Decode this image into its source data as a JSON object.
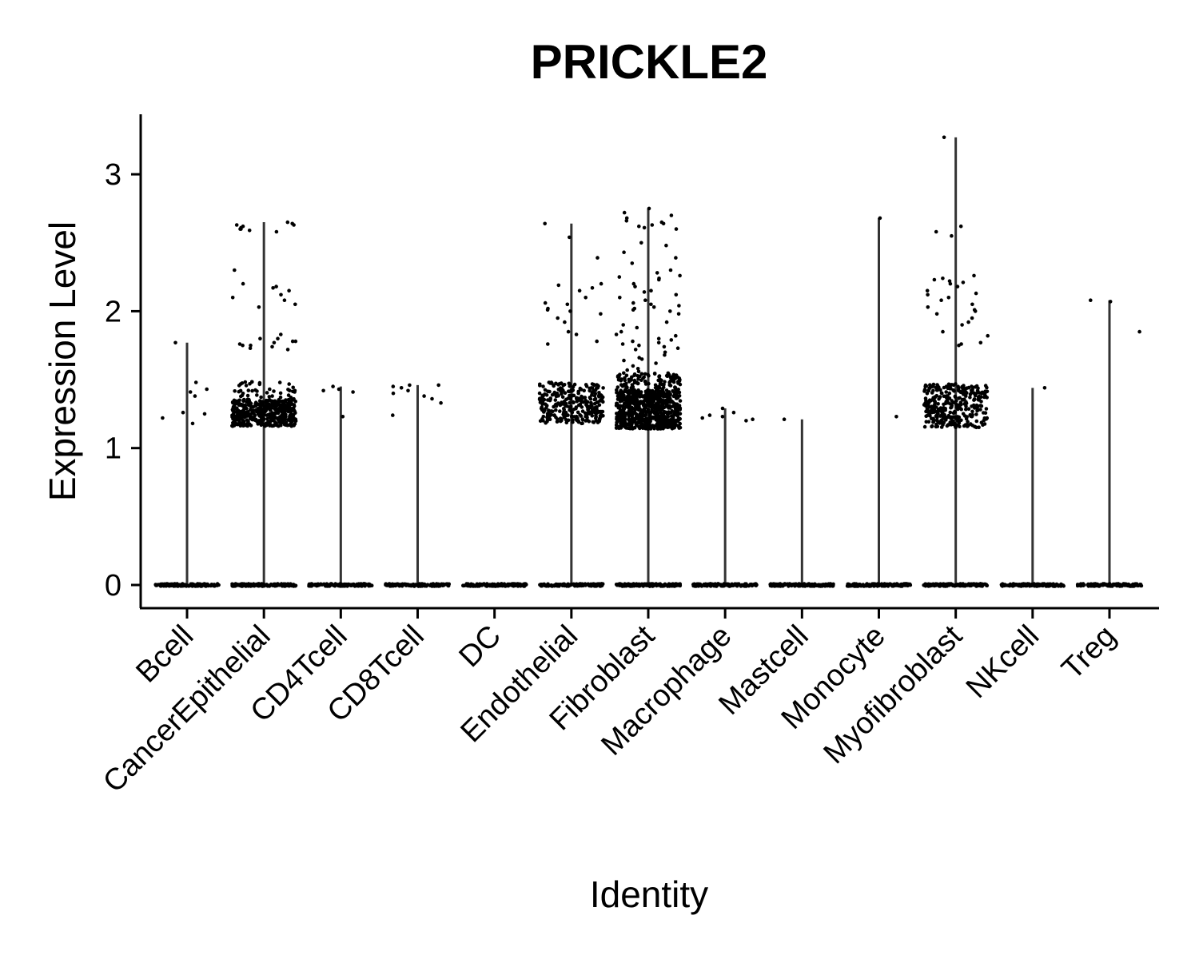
{
  "chart_data": {
    "type": "violin",
    "title": "PRICKLE2",
    "xlabel": "Identity",
    "ylabel": "Expression Level",
    "ylim": [
      -0.16,
      3.45
    ],
    "yticks": [
      0,
      1,
      2,
      3
    ],
    "grid": false,
    "legend": "none",
    "point_color": "#000000",
    "violin_color": "#333333",
    "categories": [
      {
        "name": "Bcell",
        "max": 1.77,
        "n_zero": 140,
        "clusters": [],
        "outliers": [
          1.43,
          1.26,
          1.48,
          1.38,
          1.77,
          1.22,
          1.18,
          1.41,
          1.25
        ]
      },
      {
        "name": "CancerEpithelial",
        "max": 2.65,
        "n_zero": 170,
        "clusters": [
          {
            "lo": 1.16,
            "hi": 1.36,
            "n": 430
          },
          {
            "lo": 1.37,
            "hi": 1.5,
            "n": 40
          }
        ],
        "outliers": [
          2.65,
          2.64,
          2.63,
          2.62,
          2.61,
          2.6,
          2.6,
          2.59,
          2.63,
          2.58,
          2.3,
          2.2,
          2.18,
          2.17,
          2.15,
          2.12,
          2.1,
          2.08,
          2.05,
          2.03,
          1.83,
          1.8,
          1.78,
          1.77,
          1.76,
          1.75,
          1.73,
          1.72,
          1.8,
          1.75,
          1.78,
          1.74
        ]
      },
      {
        "name": "CD4Tcell",
        "max": 1.45,
        "n_zero": 140,
        "clusters": [],
        "outliers": [
          1.45,
          1.43,
          1.42,
          1.41,
          1.23
        ]
      },
      {
        "name": "CD8Tcell",
        "max": 1.46,
        "n_zero": 140,
        "clusters": [],
        "outliers": [
          1.42,
          1.4,
          1.44,
          1.24,
          1.38,
          1.46,
          1.45,
          1.33,
          1.36,
          1.46
        ]
      },
      {
        "name": "DC",
        "max": 0,
        "n_zero": 140,
        "clusters": [],
        "outliers": []
      },
      {
        "name": "Endothelial",
        "max": 2.64,
        "n_zero": 150,
        "clusters": [
          {
            "lo": 1.18,
            "hi": 1.48,
            "n": 300
          }
        ],
        "outliers": [
          2.64,
          2.54,
          2.39,
          2.2,
          2.19,
          2.17,
          2.15,
          2.1,
          2.06,
          2.05,
          2.02,
          2.01,
          2.0,
          1.98,
          1.85,
          1.83,
          1.78,
          1.76,
          1.92,
          1.95
        ]
      },
      {
        "name": "Fibroblast",
        "max": 2.75,
        "n_zero": 170,
        "clusters": [
          {
            "lo": 1.14,
            "hi": 1.42,
            "n": 700
          },
          {
            "lo": 1.42,
            "hi": 1.55,
            "n": 120
          }
        ],
        "outliers": [
          2.75,
          2.72,
          2.7,
          2.68,
          2.66,
          2.65,
          2.64,
          2.63,
          2.62,
          2.61,
          2.6,
          2.5,
          2.48,
          2.43,
          2.39,
          2.35,
          2.3,
          2.28,
          2.26,
          2.25,
          2.24,
          2.23,
          2.2,
          2.18,
          2.15,
          2.14,
          2.12,
          2.1,
          2.08,
          2.06,
          2.05,
          2.04,
          2.03,
          2.02,
          2.01,
          2.0,
          1.98,
          1.92,
          1.9,
          1.88,
          1.85,
          1.83,
          1.82,
          1.8,
          1.79,
          1.78,
          1.77,
          1.76,
          1.75,
          1.74,
          1.73,
          1.72,
          1.7,
          1.68,
          1.66,
          1.65,
          1.64,
          1.62,
          1.6,
          1.58,
          1.57,
          1.56
        ]
      },
      {
        "name": "Macrophage",
        "max": 1.29,
        "n_zero": 140,
        "clusters": [],
        "outliers": [
          1.29,
          1.26,
          1.24,
          1.23,
          1.22,
          1.21,
          1.2
        ]
      },
      {
        "name": "Mastcell",
        "max": 1.21,
        "n_zero": 140,
        "clusters": [],
        "outliers": [
          1.21
        ]
      },
      {
        "name": "Monocyte",
        "max": 2.68,
        "n_zero": 140,
        "clusters": [],
        "outliers": [
          2.68,
          1.23
        ]
      },
      {
        "name": "Myofibroblast",
        "max": 3.27,
        "n_zero": 150,
        "clusters": [
          {
            "lo": 1.15,
            "hi": 1.47,
            "n": 330
          }
        ],
        "outliers": [
          3.27,
          2.62,
          2.58,
          2.55,
          2.26,
          2.24,
          2.23,
          2.22,
          2.21,
          2.2,
          2.18,
          2.15,
          2.13,
          2.12,
          2.1,
          2.08,
          2.05,
          2.03,
          2.01,
          2.0,
          1.98,
          1.95,
          1.92,
          1.9,
          1.85,
          1.82,
          1.77,
          1.76,
          1.75
        ]
      },
      {
        "name": "NKcell",
        "max": 1.44,
        "n_zero": 140,
        "clusters": [],
        "outliers": [
          1.44
        ]
      },
      {
        "name": "Treg",
        "max": 2.08,
        "n_zero": 140,
        "clusters": [],
        "outliers": [
          2.08,
          2.07,
          1.85
        ]
      }
    ]
  }
}
